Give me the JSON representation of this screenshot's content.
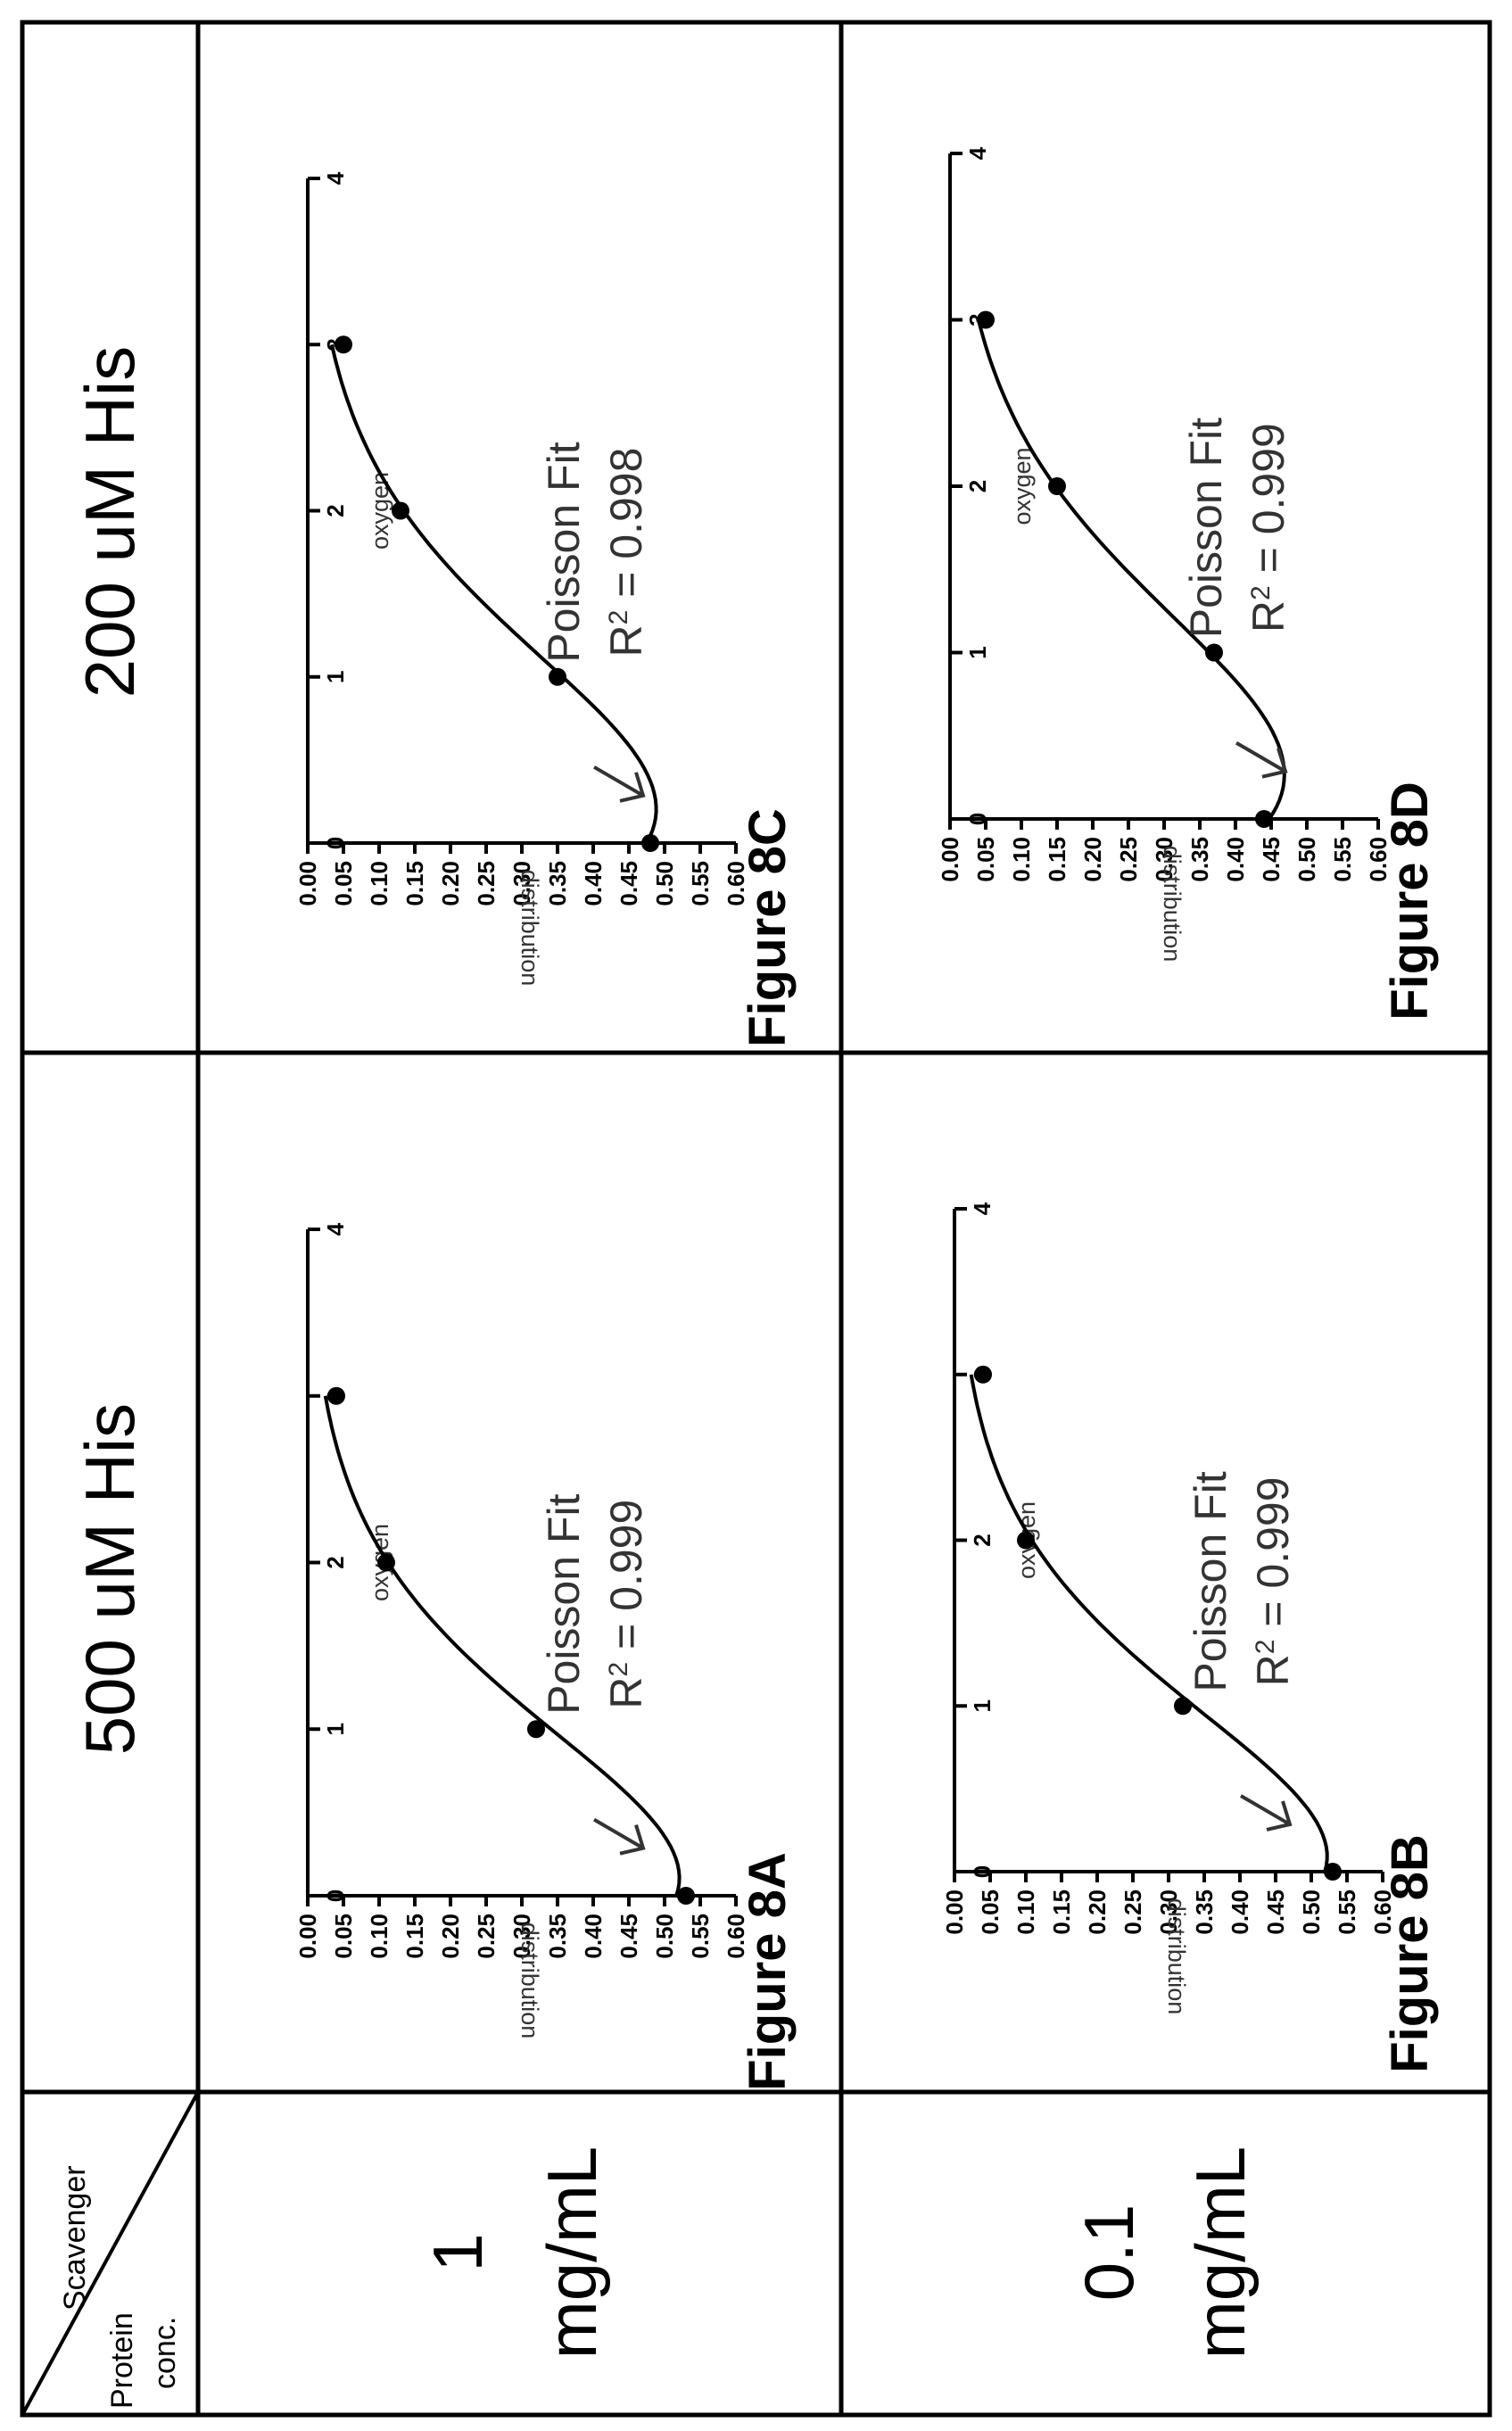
{
  "table": {
    "corner_scavenger": "Scavenger",
    "corner_protein": "Protein",
    "corner_conc": "conc.",
    "col_headers": [
      "500 uM His",
      "200 uM His"
    ],
    "row_headers": [
      {
        "line1": "1",
        "line2": "mg/mL"
      },
      {
        "line1": "0.1",
        "line2": "mg/mL"
      }
    ]
  },
  "chart_data": [
    {
      "id": "8A",
      "type": "scatter",
      "figure_label": "Figure 8A",
      "xlabel": "oxygen",
      "ylabel": "distribution",
      "xlim": [
        0,
        4
      ],
      "ylim": [
        0,
        0.6
      ],
      "xticks": [
        "0",
        "1",
        "2",
        "3",
        "4"
      ],
      "yticks": [
        "0.00",
        "0.05",
        "0.10",
        "0.15",
        "0.20",
        "0.25",
        "0.30",
        "0.35",
        "0.40",
        "0.45",
        "0.50",
        "0.55",
        "0.60"
      ],
      "x": [
        0,
        1,
        2,
        3
      ],
      "y": [
        0.53,
        0.32,
        0.11,
        0.04
      ],
      "fit_label": "Poisson Fit",
      "r2_label": "R",
      "r2_sup": "2",
      "r2_value": " = 0.999"
    },
    {
      "id": "8B",
      "type": "scatter",
      "figure_label": "Figure 8B",
      "xlabel": "oxygen",
      "ylabel": "distribution",
      "xlim": [
        0,
        4
      ],
      "ylim": [
        0,
        0.6
      ],
      "xticks": [
        "0",
        "1",
        "2",
        "3",
        "4"
      ],
      "yticks": [
        "0.00",
        "0.05",
        "0.10",
        "0.15",
        "0.20",
        "0.25",
        "0.30",
        "0.35",
        "0.40",
        "0.45",
        "0.50",
        "0.55",
        "0.60"
      ],
      "x": [
        0,
        1,
        2,
        3
      ],
      "y": [
        0.53,
        0.32,
        0.1,
        0.04
      ],
      "fit_label": "Poisson Fit",
      "r2_label": "R",
      "r2_sup": "2",
      "r2_value": " = 0.999"
    },
    {
      "id": "8C",
      "type": "scatter",
      "figure_label": "Figure 8C",
      "xlabel": "oxygen",
      "ylabel": "distribution",
      "xlim": [
        0,
        4
      ],
      "ylim": [
        0,
        0.6
      ],
      "xticks": [
        "0",
        "1",
        "2",
        "3",
        "4"
      ],
      "yticks": [
        "0.00",
        "0.05",
        "0.10",
        "0.15",
        "0.20",
        "0.25",
        "0.30",
        "0.35",
        "0.40",
        "0.45",
        "0.50",
        "0.55",
        "0.60"
      ],
      "x": [
        0,
        1,
        2,
        3
      ],
      "y": [
        0.48,
        0.35,
        0.13,
        0.05
      ],
      "fit_label": "Poisson Fit",
      "r2_label": "R",
      "r2_sup": "2",
      "r2_value": " = 0.998"
    },
    {
      "id": "8D",
      "type": "scatter",
      "figure_label": "Figure 8D",
      "xlabel": "oxygen",
      "ylabel": "distribution",
      "xlim": [
        0,
        4
      ],
      "ylim": [
        0,
        0.6
      ],
      "xticks": [
        "0",
        "1",
        "2",
        "3",
        "4"
      ],
      "yticks": [
        "0.00",
        "0.05",
        "0.10",
        "0.15",
        "0.20",
        "0.25",
        "0.30",
        "0.35",
        "0.40",
        "0.45",
        "0.50",
        "0.55",
        "0.60"
      ],
      "x": [
        0,
        1,
        2,
        3
      ],
      "y": [
        0.44,
        0.37,
        0.15,
        0.05
      ],
      "fit_label": "Poisson Fit",
      "r2_label": "R",
      "r2_sup": "2",
      "r2_value": " = 0.999"
    }
  ]
}
